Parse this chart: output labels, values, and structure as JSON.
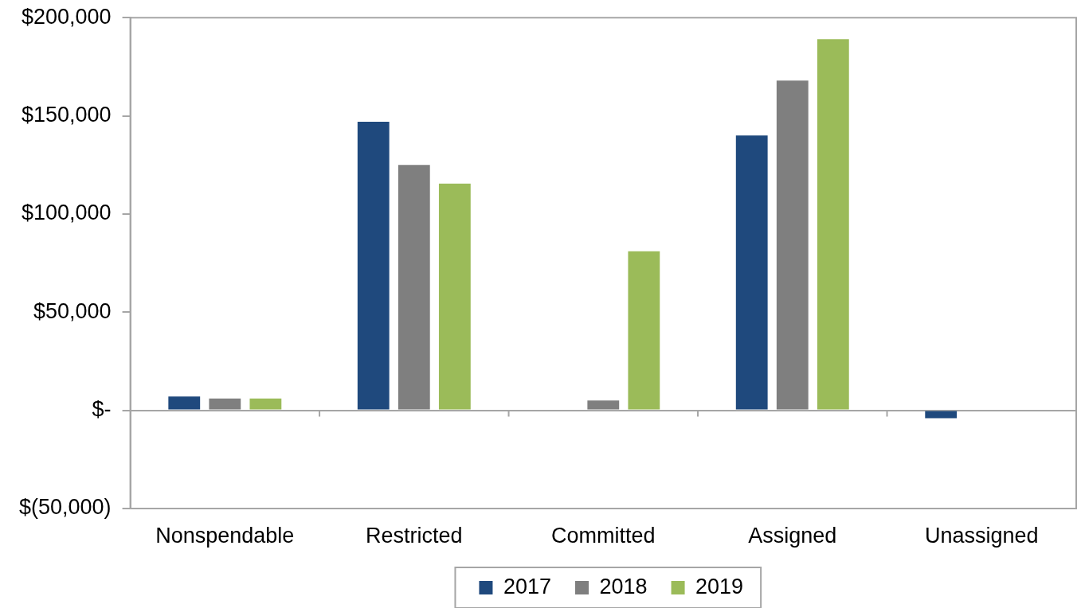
{
  "chart_data": {
    "type": "bar",
    "categories": [
      "Nonspendable",
      "Restricted",
      "Committed",
      "Assigned",
      "Unassigned"
    ],
    "series": [
      {
        "name": "2017",
        "color": "#1f497d",
        "values": [
          7000,
          147000,
          null,
          140000,
          -4000
        ]
      },
      {
        "name": "2018",
        "color": "#7f7f7f",
        "values": [
          6000,
          125000,
          5000,
          168000,
          null
        ]
      },
      {
        "name": "2019",
        "color": "#9bbb59",
        "values": [
          6000,
          115500,
          81000,
          189000,
          null
        ]
      }
    ],
    "ylim": [
      -50000,
      200000
    ],
    "yticks": [
      {
        "value": -50000,
        "label": "$(50,000)"
      },
      {
        "value": 0,
        "label": "$-"
      },
      {
        "value": 50000,
        "label": "$50,000"
      },
      {
        "value": 100000,
        "label": "$100,000"
      },
      {
        "value": 150000,
        "label": "$150,000"
      },
      {
        "value": 200000,
        "label": "$200,000"
      }
    ],
    "legend": "bottom"
  }
}
